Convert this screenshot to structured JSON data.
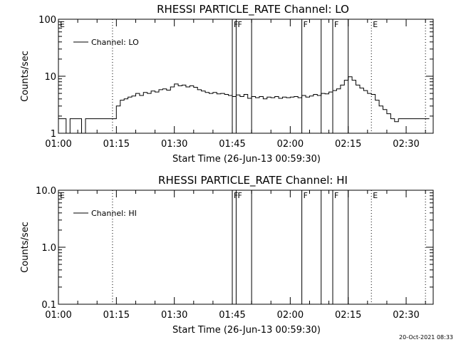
{
  "timestamp": "20-Oct-2021 08:33",
  "x_tick_labels": [
    "01:00",
    "01:15",
    "01:30",
    "01:45",
    "02:00",
    "02:15",
    "02:30"
  ],
  "chart_data": [
    {
      "type": "line",
      "title": "RHESSI PARTICLE_RATE Channel: LO",
      "xlabel": "Start Time (26-Jun-13 00:59:30)",
      "ylabel": "Counts/sec",
      "yscale": "log",
      "ylim": [
        1,
        100
      ],
      "xlim": [
        "01:00",
        "02:37"
      ],
      "y_tick_labels": [
        "1",
        "10",
        "100"
      ],
      "legend": {
        "placement": "top-left",
        "label": "Channel: LO"
      },
      "series": [
        {
          "name": "Channel: LO",
          "x": [
            "01:00",
            "01:01",
            "01:02",
            "01:03",
            "01:04",
            "01:05",
            "01:06",
            "01:07",
            "01:08",
            "01:09",
            "01:10",
            "01:11",
            "01:12",
            "01:13",
            "01:14",
            "01:15",
            "01:16",
            "01:17",
            "01:18",
            "01:19",
            "01:20",
            "01:21",
            "01:22",
            "01:23",
            "01:24",
            "01:25",
            "01:26",
            "01:27",
            "01:28",
            "01:29",
            "01:30",
            "01:31",
            "01:32",
            "01:33",
            "01:34",
            "01:35",
            "01:36",
            "01:37",
            "01:38",
            "01:39",
            "01:40",
            "01:41",
            "01:42",
            "01:43",
            "01:44",
            "01:45",
            "01:46",
            "01:47",
            "01:48",
            "01:49",
            "01:50",
            "01:51",
            "01:52",
            "01:53",
            "01:54",
            "01:55",
            "01:56",
            "01:57",
            "01:58",
            "01:59",
            "02:00",
            "02:01",
            "02:02",
            "02:03",
            "02:04",
            "02:05",
            "02:06",
            "02:07",
            "02:08",
            "02:09",
            "02:10",
            "02:11",
            "02:12",
            "02:13",
            "02:14",
            "02:15",
            "02:16",
            "02:17",
            "02:18",
            "02:19",
            "02:20",
            "02:21",
            "02:22",
            "02:23",
            "02:24",
            "02:25",
            "02:26",
            "02:27",
            "02:28",
            "02:29",
            "02:30",
            "02:31",
            "02:32",
            "02:33",
            "02:34",
            "02:35"
          ],
          "values": [
            1.8,
            1.8,
            1,
            1.8,
            1.8,
            1.8,
            1,
            1.8,
            1.8,
            1.8,
            1.8,
            1.8,
            1.8,
            1.8,
            1.8,
            3.0,
            3.8,
            4.0,
            4.3,
            4.5,
            5.0,
            4.6,
            5.2,
            5.0,
            5.5,
            5.3,
            5.8,
            6.0,
            5.7,
            6.5,
            7.3,
            6.8,
            7.0,
            6.5,
            6.8,
            6.4,
            5.8,
            5.5,
            5.2,
            5.0,
            5.2,
            4.9,
            5.0,
            4.8,
            4.6,
            4.4,
            4.7,
            4.4,
            4.8,
            4.1,
            4.4,
            4.2,
            4.4,
            4.0,
            4.3,
            4.2,
            4.4,
            4.1,
            4.3,
            4.2,
            4.3,
            4.4,
            4.2,
            4.6,
            4.3,
            4.5,
            4.8,
            4.6,
            5.0,
            4.9,
            5.3,
            5.6,
            6.0,
            7.0,
            8.5,
            9.8,
            8.5,
            7.0,
            6.2,
            5.6,
            5.0,
            4.8,
            3.8,
            3.0,
            2.6,
            2.2,
            1.8,
            1.6,
            1.8,
            1.8,
            1.8,
            1.8,
            1.8,
            1.8,
            1.8,
            1.8
          ]
        }
      ],
      "annotations": [
        {
          "time": "01:14",
          "style": "dotted",
          "label": ""
        },
        {
          "time": "01:45",
          "style": "solid",
          "label": "F"
        },
        {
          "time": "01:46",
          "style": "solid",
          "label": "F"
        },
        {
          "time": "01:50",
          "style": "solid",
          "label": ""
        },
        {
          "time": "02:03",
          "style": "solid",
          "label": "F"
        },
        {
          "time": "02:08",
          "style": "solid",
          "label": ""
        },
        {
          "time": "02:11",
          "style": "solid",
          "label": "F"
        },
        {
          "time": "02:15",
          "style": "solid",
          "label": ""
        },
        {
          "time": "02:21",
          "style": "dotted",
          "label": "E"
        },
        {
          "time": "02:35",
          "style": "dotted",
          "label": ""
        }
      ],
      "corner_label": "E"
    },
    {
      "type": "line",
      "title": "RHESSI PARTICLE_RATE Channel: HI",
      "xlabel": "Start Time (26-Jun-13 00:59:30)",
      "ylabel": "Counts/sec",
      "yscale": "log",
      "ylim": [
        0.1,
        10
      ],
      "xlim": [
        "01:00",
        "02:37"
      ],
      "y_tick_labels": [
        "0.1",
        "1.0",
        "10.0"
      ],
      "legend": {
        "placement": "top-left",
        "label": "Channel: HI"
      },
      "series": [
        {
          "name": "Channel: HI",
          "x": [],
          "values": []
        }
      ],
      "annotations": [
        {
          "time": "01:14",
          "style": "dotted",
          "label": ""
        },
        {
          "time": "01:45",
          "style": "solid",
          "label": "F"
        },
        {
          "time": "01:46",
          "style": "solid",
          "label": "F"
        },
        {
          "time": "01:50",
          "style": "solid",
          "label": ""
        },
        {
          "time": "02:03",
          "style": "solid",
          "label": "F"
        },
        {
          "time": "02:08",
          "style": "solid",
          "label": ""
        },
        {
          "time": "02:11",
          "style": "solid",
          "label": "F"
        },
        {
          "time": "02:15",
          "style": "solid",
          "label": ""
        },
        {
          "time": "02:21",
          "style": "dotted",
          "label": "E"
        },
        {
          "time": "02:35",
          "style": "dotted",
          "label": ""
        }
      ],
      "corner_label": "E"
    }
  ]
}
